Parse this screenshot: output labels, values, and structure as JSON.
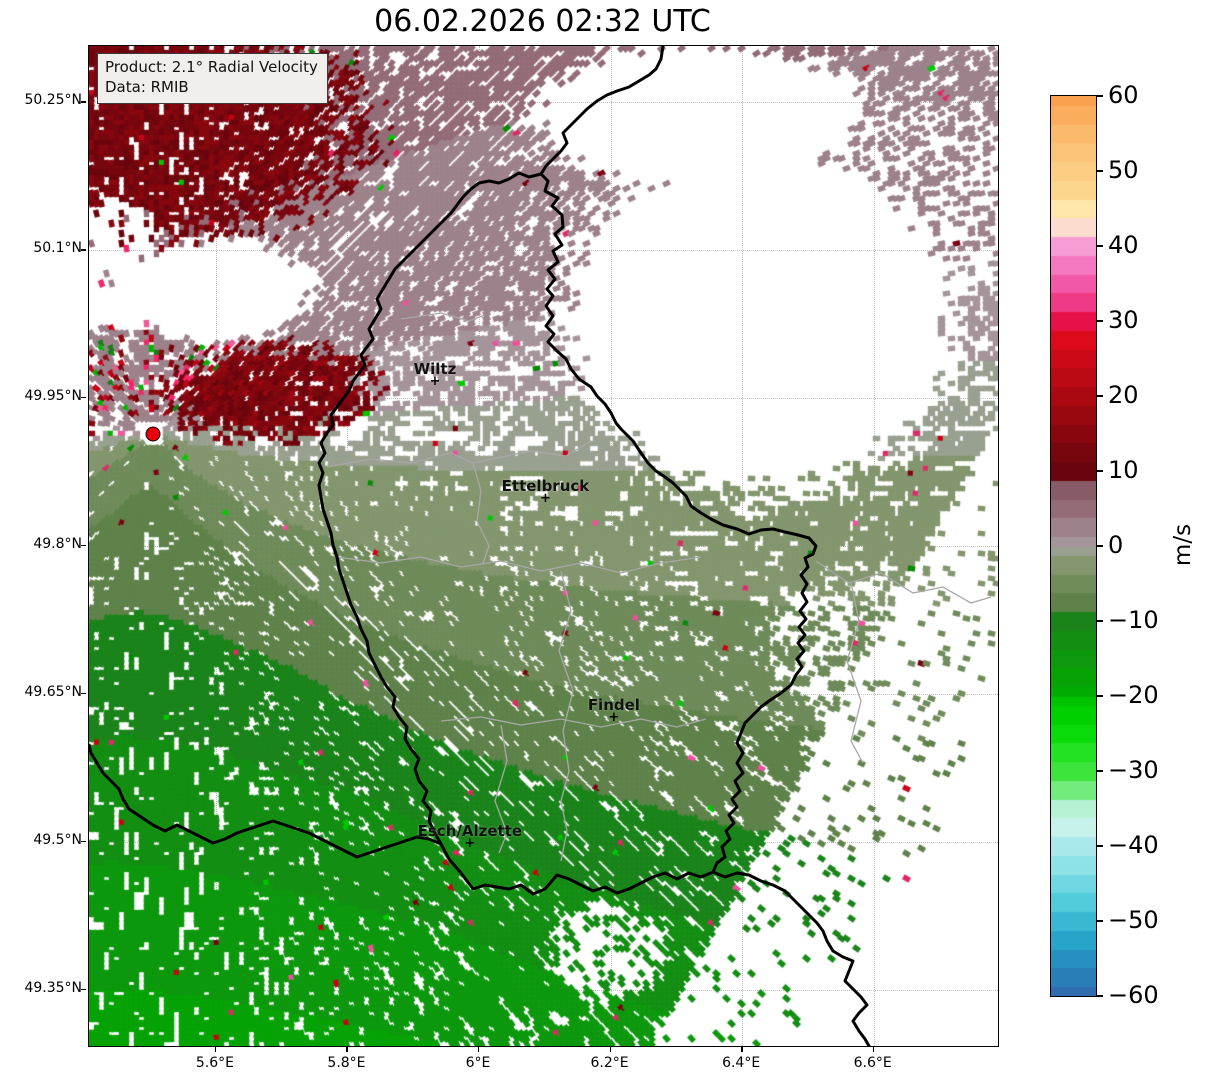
{
  "title": "06.02.2026 02:32 UTC",
  "info_box": {
    "product_line": "Product: 2.1° Radial Velocity",
    "data_line": "Data: RMIB"
  },
  "axes": {
    "lon_ticks": [
      {
        "label": "5.6°E",
        "lon": 5.6
      },
      {
        "label": "5.8°E",
        "lon": 5.8
      },
      {
        "label": "6°E",
        "lon": 6.0
      },
      {
        "label": "6.2°E",
        "lon": 6.2
      },
      {
        "label": "6.4°E",
        "lon": 6.4
      },
      {
        "label": "6.6°E",
        "lon": 6.6
      }
    ],
    "lat_ticks": [
      {
        "label": "50.25°N",
        "lat": 50.25
      },
      {
        "label": "50.1°N",
        "lat": 50.1
      },
      {
        "label": "49.95°N",
        "lat": 49.95
      },
      {
        "label": "49.8°N",
        "lat": 49.8
      },
      {
        "label": "49.65°N",
        "lat": 49.65
      },
      {
        "label": "49.5°N",
        "lat": 49.5
      },
      {
        "label": "49.35°N",
        "lat": 49.35
      }
    ]
  },
  "map_extent": {
    "lon_min": 5.407,
    "lon_max": 6.789,
    "lat_min": 49.293,
    "lat_max": 50.307
  },
  "cities": [
    {
      "name": "Wiltz",
      "lon": 5.933,
      "lat": 49.966
    },
    {
      "name": "Ettelbruck",
      "lon": 6.101,
      "lat": 49.848
    },
    {
      "name": "Findel",
      "lon": 6.205,
      "lat": 49.626
    },
    {
      "name": "Esch/Alzette",
      "lon": 5.986,
      "lat": 49.498
    }
  ],
  "radar_site": {
    "lon": 5.505,
    "lat": 49.914,
    "marker_color": "#e8000b"
  },
  "colorbar": {
    "label": "m/s",
    "vmin": -60,
    "vmax": 60,
    "tick_labels": [
      {
        "label": "60",
        "value": 60
      },
      {
        "label": "50",
        "value": 50
      },
      {
        "label": "40",
        "value": 40
      },
      {
        "label": "30",
        "value": 30
      },
      {
        "label": "20",
        "value": 20
      },
      {
        "label": "10",
        "value": 10
      },
      {
        "label": "0",
        "value": 0
      },
      {
        "label": "−10",
        "value": -10
      },
      {
        "label": "−20",
        "value": -20
      },
      {
        "label": "−30",
        "value": -30
      },
      {
        "label": "−40",
        "value": -40
      },
      {
        "label": "−50",
        "value": -50
      },
      {
        "label": "−60",
        "value": -60
      }
    ],
    "palette": [
      [
        60,
        "#f9a14e"
      ],
      [
        53,
        "#fbc276"
      ],
      [
        47,
        "#fcd88e"
      ],
      [
        44,
        "#fdedb6"
      ],
      [
        41.5,
        "#f9d2e2"
      ],
      [
        40,
        "#f79cd4"
      ],
      [
        36,
        "#f263b4"
      ],
      [
        32,
        "#ee3580"
      ],
      [
        30,
        "#e81048"
      ],
      [
        28,
        "#e00a1c"
      ],
      [
        22,
        "#b80a12"
      ],
      [
        12,
        "#74060e"
      ],
      [
        8,
        "#60040c"
      ],
      [
        7.99,
        "#845866"
      ],
      [
        6,
        "#8f6470"
      ],
      [
        4,
        "#977480"
      ],
      [
        2,
        "#9f868e"
      ],
      [
        0.01,
        "#a5949a"
      ],
      [
        0,
        "#99a090"
      ],
      [
        -2,
        "#879872"
      ],
      [
        -4,
        "#768e62"
      ],
      [
        -6,
        "#688852"
      ],
      [
        -8,
        "#5c8048"
      ],
      [
        -8.01,
        "#207c20"
      ],
      [
        -12,
        "#148c14"
      ],
      [
        -16,
        "#0a9c0a"
      ],
      [
        -20,
        "#00ac00"
      ],
      [
        -20.01,
        "#00c400"
      ],
      [
        -24,
        "#00d800"
      ],
      [
        -27,
        "#1ee01e"
      ],
      [
        -30,
        "#3ce43c"
      ],
      [
        -32,
        "#66ea6a"
      ],
      [
        -34,
        "#9cf0b4"
      ],
      [
        -35.5,
        "#c4f2e4"
      ],
      [
        -38,
        "#c8f2ee"
      ],
      [
        -40,
        "#aae8ec"
      ],
      [
        -44,
        "#7cdce4"
      ],
      [
        -48,
        "#4cc8da"
      ],
      [
        -52,
        "#28a8cc"
      ],
      [
        -56,
        "#2588bc"
      ],
      [
        -60,
        "#2f6cb0"
      ]
    ]
  },
  "colors": {
    "country_border": "#000000",
    "district_border": "#a8a8a8",
    "grid": "#c2c2c2",
    "background": "#ffffff",
    "info_box_bg": "#f2eeec"
  }
}
